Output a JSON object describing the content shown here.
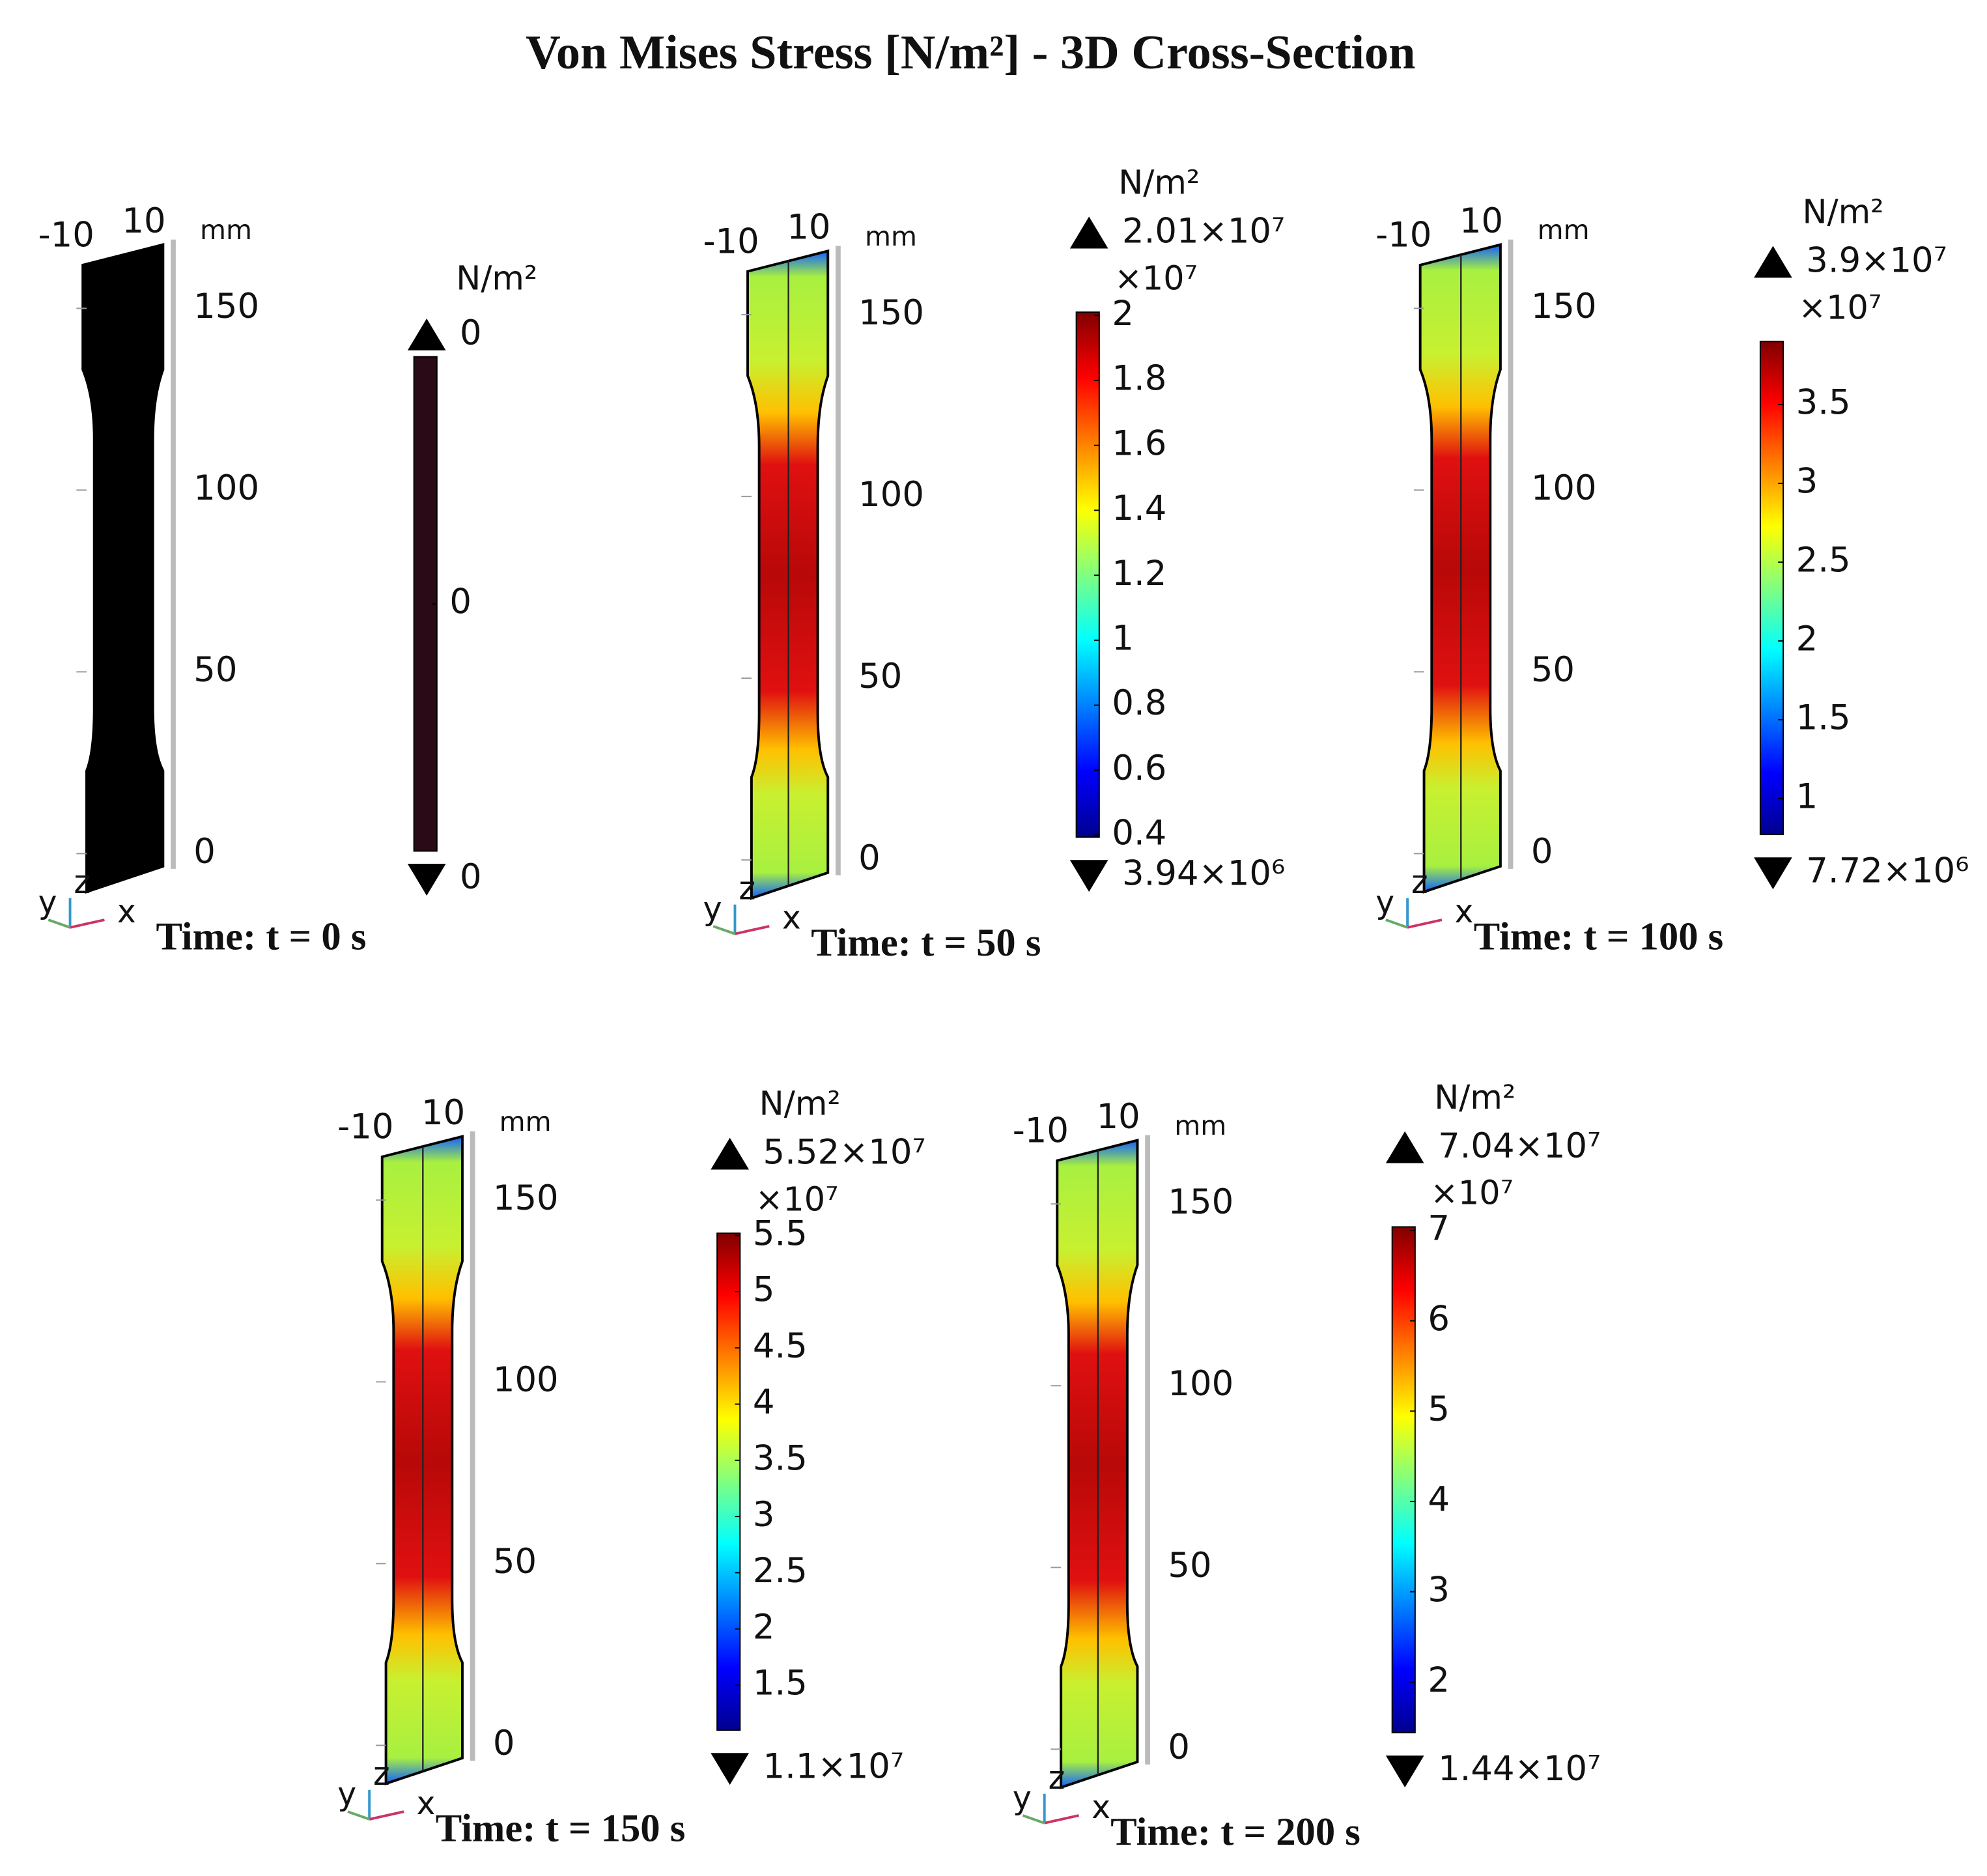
{
  "title": "Von Mises Stress [N/m²] - 3D Cross-Section",
  "panels": [
    {
      "time_label": "Time: t = 0 s",
      "axis_unit": "mm",
      "top_ticks": [
        "-10",
        "10"
      ],
      "height_ticks": [
        150,
        100,
        50,
        0
      ],
      "triad": [
        "y",
        "z",
        "x"
      ],
      "fill": "#000000",
      "colorbar": {
        "unit": "N/m²",
        "max": {
          "value": 0,
          "label": "0"
        },
        "min": {
          "value": 0,
          "label": "0"
        },
        "ticks": [
          0
        ],
        "colors": [
          "#2a0a16",
          "#2a0a16"
        ]
      }
    },
    {
      "time_label": "Time: t = 50 s",
      "axis_unit": "mm",
      "top_ticks": [
        "-10",
        "10"
      ],
      "height_ticks": [
        150,
        100,
        50,
        0
      ],
      "triad": [
        "y",
        "z",
        "x"
      ],
      "fill": "jet",
      "colorbar": {
        "unit": "N/m²",
        "max": {
          "value": 20100000,
          "label": "2.01×10⁷"
        },
        "min": {
          "value": 3940000,
          "label": "3.94×10⁶"
        },
        "multiplier": {
          "value": 10000000,
          "label": "×10⁷"
        },
        "ticks": [
          2,
          1.8,
          1.6,
          1.4,
          1.2,
          1,
          0.8,
          0.6,
          0.4
        ],
        "colors": [
          "#800000",
          "#ff0000",
          "#ff8000",
          "#ffff00",
          "#80ff80",
          "#00ffff",
          "#0080ff",
          "#0000ff",
          "#00008f"
        ]
      }
    },
    {
      "time_label": "Time: t = 100 s",
      "axis_unit": "mm",
      "top_ticks": [
        "-10",
        "10"
      ],
      "height_ticks": [
        150,
        100,
        50,
        0
      ],
      "triad": [
        "y",
        "z",
        "x"
      ],
      "fill": "jet",
      "colorbar": {
        "unit": "N/m²",
        "max": {
          "value": 39000000,
          "label": "3.9×10⁷"
        },
        "min": {
          "value": 7720000,
          "label": "7.72×10⁶"
        },
        "multiplier": {
          "value": 10000000,
          "label": "×10⁷"
        },
        "ticks": [
          3.5,
          3,
          2.5,
          2,
          1.5,
          1
        ],
        "colors": [
          "#800000",
          "#ff0000",
          "#ff8000",
          "#ffff00",
          "#80ff80",
          "#00ffff",
          "#0080ff",
          "#0000ff",
          "#00008f"
        ]
      }
    },
    {
      "time_label": "Time: t = 150 s",
      "axis_unit": "mm",
      "top_ticks": [
        "-10",
        "10"
      ],
      "height_ticks": [
        150,
        100,
        50,
        0
      ],
      "triad": [
        "y",
        "z",
        "x"
      ],
      "fill": "jet",
      "colorbar": {
        "unit": "N/m²",
        "max": {
          "value": 55200000,
          "label": "5.52×10⁷"
        },
        "min": {
          "value": 11000000,
          "label": "1.1×10⁷"
        },
        "multiplier": {
          "value": 10000000,
          "label": "×10⁷"
        },
        "ticks": [
          5.5,
          5,
          4.5,
          4,
          3.5,
          3,
          2.5,
          2,
          1.5
        ],
        "colors": [
          "#800000",
          "#ff0000",
          "#ff8000",
          "#ffff00",
          "#80ff80",
          "#00ffff",
          "#0080ff",
          "#0000ff",
          "#00008f"
        ]
      }
    },
    {
      "time_label": "Time: t = 200 s",
      "axis_unit": "mm",
      "top_ticks": [
        "-10",
        "10"
      ],
      "height_ticks": [
        150,
        100,
        50,
        0
      ],
      "triad": [
        "y",
        "z",
        "x"
      ],
      "fill": "jet",
      "colorbar": {
        "unit": "N/m²",
        "max": {
          "value": 70400000,
          "label": "7.04×10⁷"
        },
        "min": {
          "value": 14400000,
          "label": "1.44×10⁷"
        },
        "multiplier": {
          "value": 10000000,
          "label": "×10⁷"
        },
        "ticks": [
          7,
          6,
          5,
          4,
          3,
          2
        ],
        "colors": [
          "#800000",
          "#ff0000",
          "#ff8000",
          "#ffff00",
          "#80ff80",
          "#00ffff",
          "#0080ff",
          "#0000ff",
          "#00008f"
        ]
      }
    }
  ]
}
